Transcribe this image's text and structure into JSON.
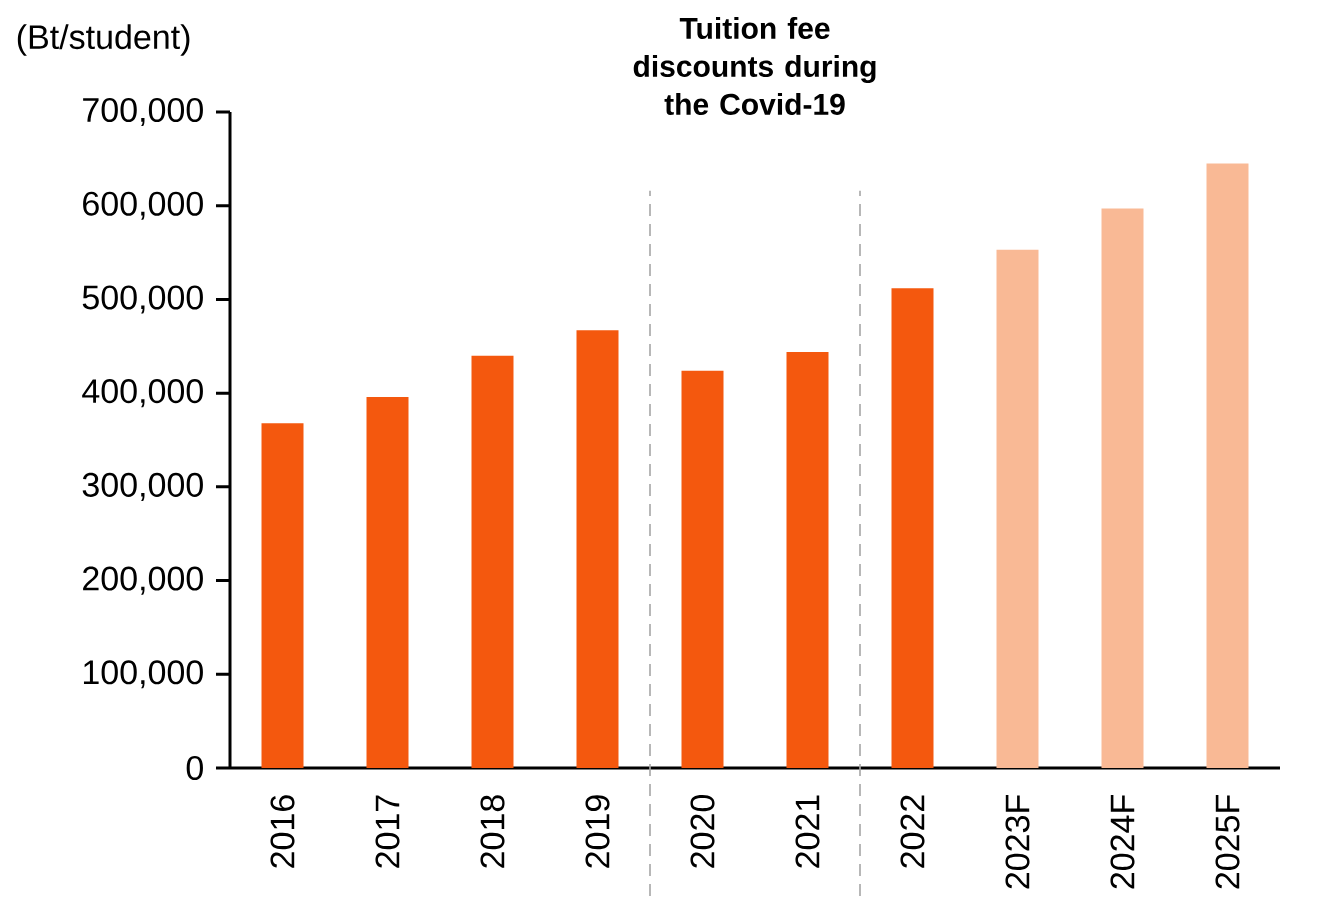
{
  "chart_data": {
    "type": "bar",
    "ylabel": "(Bt/student)",
    "annotations": [
      "Tuition fee discounts during the Covid-19"
    ],
    "categories": [
      "2016",
      "2017",
      "2018",
      "2019",
      "2020",
      "2021",
      "2022",
      "2023F",
      "2024F",
      "2025F"
    ],
    "values": [
      368000,
      396000,
      440000,
      467000,
      424000,
      444000,
      512000,
      553000,
      597000,
      645000
    ],
    "colors": [
      "#f4580e",
      "#f4580e",
      "#f4580e",
      "#f4580e",
      "#f4580e",
      "#f4580e",
      "#f4580e",
      "#f9b995",
      "#f9b995",
      "#f9b995"
    ],
    "ylim": [
      0,
      700000
    ],
    "yticks": [
      {
        "value": 0,
        "label": "0"
      },
      {
        "value": 100000,
        "label": "100,000"
      },
      {
        "value": 200000,
        "label": "200,000"
      },
      {
        "value": 300000,
        "label": "300,000"
      },
      {
        "value": 400000,
        "label": "400,000"
      },
      {
        "value": 500000,
        "label": "500,000"
      },
      {
        "value": 600000,
        "label": "600,000"
      },
      {
        "value": 700000,
        "label": "700,000"
      }
    ]
  }
}
